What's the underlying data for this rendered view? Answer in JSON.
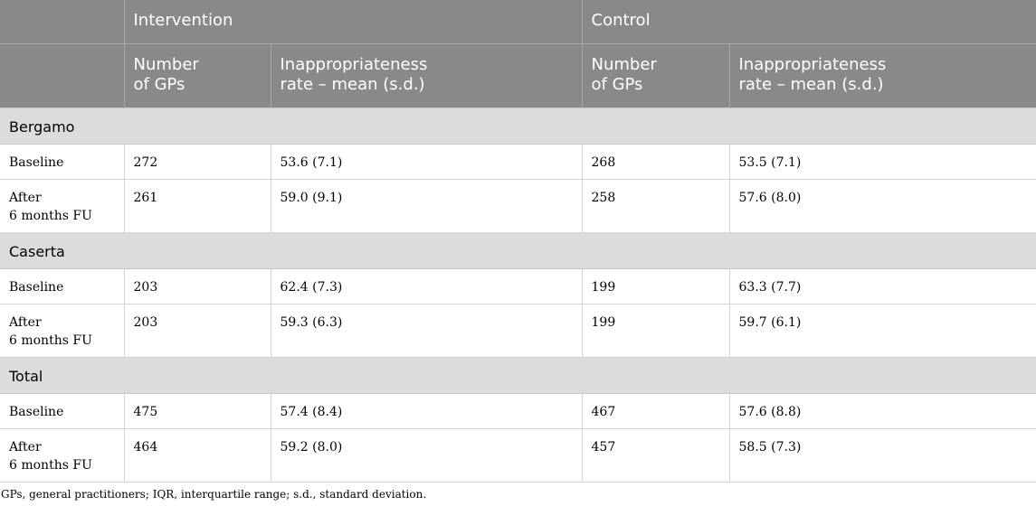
{
  "header": {
    "groups": [
      "Intervention",
      "Control"
    ],
    "subcolumns": [
      {
        "line1": "Number",
        "line2": "of GPs"
      },
      {
        "line1": "Inappropriateness",
        "line2": "rate – mean (s.d.)"
      },
      {
        "line1": "Number",
        "line2": "of GPs"
      },
      {
        "line1": "Inappropriateness",
        "line2": "rate – mean (s.d.)"
      }
    ]
  },
  "sections": [
    {
      "name": "Bergamo",
      "rows": [
        {
          "label1": "Baseline",
          "label2": "",
          "values": [
            "272",
            "53.6 (7.1)",
            "268",
            "53.5 (7.1)"
          ]
        },
        {
          "label1": "After",
          "label2": "6 months FU",
          "values": [
            "261",
            "59.0 (9.1)",
            "258",
            "57.6 (8.0)"
          ]
        }
      ]
    },
    {
      "name": "Caserta",
      "rows": [
        {
          "label1": "Baseline",
          "label2": "",
          "values": [
            "203",
            "62.4 (7.3)",
            "199",
            "63.3 (7.7)"
          ]
        },
        {
          "label1": "After",
          "label2": "6 months FU",
          "values": [
            "203",
            "59.3 (6.3)",
            "199",
            "59.7 (6.1)"
          ]
        }
      ]
    },
    {
      "name": "Total",
      "rows": [
        {
          "label1": "Baseline",
          "label2": "",
          "values": [
            "475",
            "57.4 (8.4)",
            "467",
            "57.6 (8.8)"
          ]
        },
        {
          "label1": "After",
          "label2": "6 months FU",
          "values": [
            "464",
            "59.2 (8.0)",
            "457",
            "58.5 (7.3)"
          ]
        }
      ]
    }
  ],
  "footnote": "GPs, general practitioners; IQR, interquartile range; s.d., standard deviation.",
  "colors": {
    "header_bg": "#898989",
    "group_bg": "#dcdcdc"
  }
}
